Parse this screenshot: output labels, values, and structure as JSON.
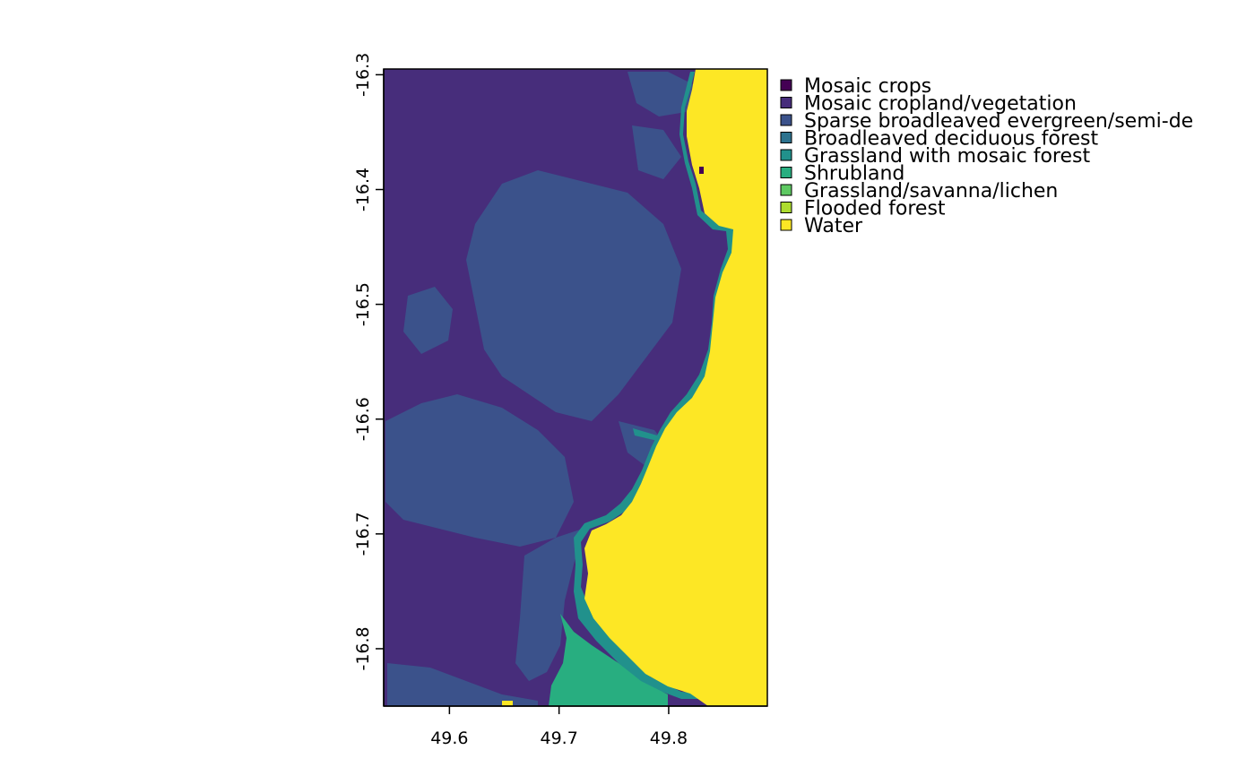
{
  "map": {
    "x_ticks": [
      "49.6",
      "49.7",
      "49.8"
    ],
    "y_ticks": [
      "-16.3",
      "-16.4",
      "-16.5",
      "-16.6",
      "-16.7",
      "-16.8"
    ],
    "x_tick_values": [
      49.6,
      49.7,
      49.8
    ],
    "y_tick_values": [
      -16.3,
      -16.4,
      -16.5,
      -16.6,
      -16.7,
      -16.8
    ],
    "xlim": [
      49.54,
      49.89
    ],
    "ylim": [
      -16.85,
      -16.295
    ]
  },
  "legend": {
    "placement": "top-right",
    "items": [
      {
        "label": "Mosaic crops",
        "color": "#440154"
      },
      {
        "label": "Mosaic cropland/vegetation",
        "color": "#472d7b"
      },
      {
        "label": "Sparse broadleaved evergreen/semi-de",
        "color": "#3b528b"
      },
      {
        "label": "Broadleaved deciduous forest",
        "color": "#2c728e"
      },
      {
        "label": "Grassland with mosaic forest",
        "color": "#21918c"
      },
      {
        "label": "Shrubland",
        "color": "#28ae80"
      },
      {
        "label": "Grassland/savanna/lichen",
        "color": "#5ec962"
      },
      {
        "label": "Flooded forest",
        "color": "#addc30"
      },
      {
        "label": "Water",
        "color": "#fde725"
      }
    ]
  }
}
